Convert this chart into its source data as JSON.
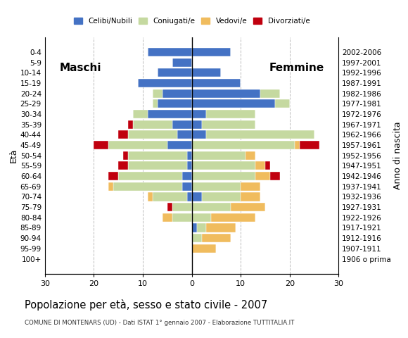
{
  "age_groups": [
    "0-4",
    "5-9",
    "10-14",
    "15-19",
    "20-24",
    "25-29",
    "30-34",
    "35-39",
    "40-44",
    "45-49",
    "50-54",
    "55-59",
    "60-64",
    "65-69",
    "70-74",
    "75-79",
    "80-84",
    "85-89",
    "90-94",
    "95-99",
    "100+"
  ],
  "birth_years": [
    "2002-2006",
    "1997-2001",
    "1992-1996",
    "1987-1991",
    "1982-1986",
    "1977-1981",
    "1972-1976",
    "1967-1971",
    "1962-1966",
    "1957-1961",
    "1952-1956",
    "1947-1951",
    "1942-1946",
    "1937-1941",
    "1932-1936",
    "1927-1931",
    "1922-1926",
    "1917-1921",
    "1912-1916",
    "1907-1911",
    "1906 o prima"
  ],
  "colors": {
    "celibe": "#4472C4",
    "coniugato": "#C5D9A0",
    "vedovo": "#F0BC5E",
    "divorziato": "#C0000E"
  },
  "males": {
    "celibe": [
      9,
      4,
      7,
      11,
      6,
      7,
      9,
      4,
      3,
      5,
      1,
      1,
      2,
      2,
      1,
      0,
      0,
      0,
      0,
      0,
      0
    ],
    "coniugato": [
      0,
      0,
      0,
      0,
      2,
      1,
      3,
      8,
      10,
      12,
      12,
      12,
      13,
      14,
      7,
      4,
      4,
      0,
      0,
      0,
      0
    ],
    "vedovo": [
      0,
      0,
      0,
      0,
      0,
      0,
      0,
      0,
      0,
      0,
      0,
      0,
      0,
      1,
      1,
      0,
      2,
      0,
      0,
      0,
      0
    ],
    "divorziato": [
      0,
      0,
      0,
      0,
      0,
      0,
      0,
      1,
      2,
      3,
      1,
      2,
      2,
      0,
      0,
      1,
      0,
      0,
      0,
      0,
      0
    ]
  },
  "females": {
    "celibe": [
      8,
      0,
      6,
      10,
      14,
      17,
      3,
      2,
      3,
      0,
      0,
      0,
      0,
      0,
      2,
      0,
      0,
      1,
      0,
      0,
      0
    ],
    "coniugato": [
      0,
      0,
      0,
      0,
      4,
      3,
      10,
      11,
      22,
      21,
      11,
      13,
      13,
      10,
      8,
      8,
      4,
      2,
      2,
      0,
      0
    ],
    "vedovo": [
      0,
      0,
      0,
      0,
      0,
      0,
      0,
      0,
      0,
      1,
      2,
      2,
      3,
      4,
      4,
      7,
      9,
      6,
      6,
      5,
      0
    ],
    "divorziato": [
      0,
      0,
      0,
      0,
      0,
      0,
      0,
      0,
      0,
      4,
      0,
      1,
      2,
      0,
      0,
      0,
      0,
      0,
      0,
      0,
      0
    ]
  },
  "title": "Popolazione per età, sesso e stato civile - 2007",
  "subtitle": "COMUNE DI MONTENARS (UD) - Dati ISTAT 1° gennaio 2007 - Elaborazione TUTTITALIA.IT",
  "xlabel_left": "Maschi",
  "xlabel_right": "Femmine",
  "ylabel_left": "Età",
  "ylabel_right": "Anno di nascita",
  "xlim": 30,
  "legend_labels": [
    "Celibi/Nubili",
    "Coniugati/e",
    "Vedovi/e",
    "Divorziati/e"
  ],
  "bg_color": "#FFFFFF",
  "grid_color": "#BBBBBB",
  "bar_height": 0.82
}
